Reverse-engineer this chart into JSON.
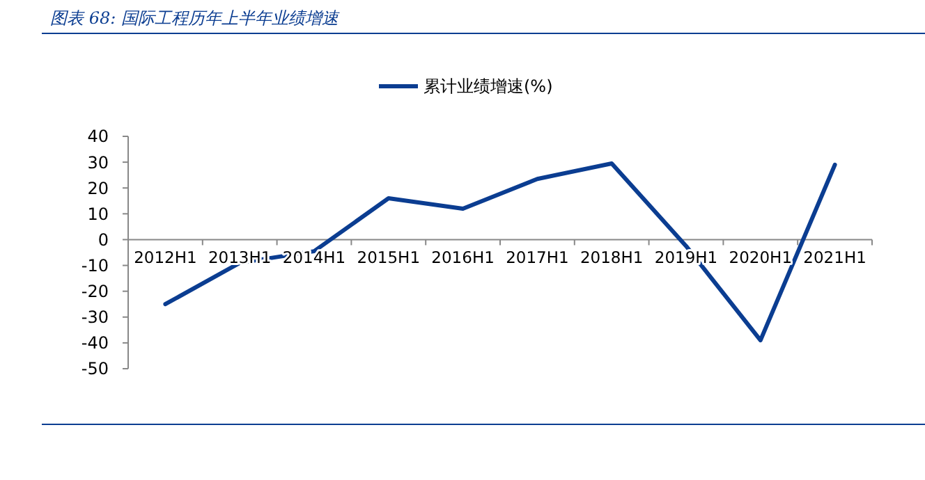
{
  "chart_data": {
    "type": "line",
    "title": "图表 68:  国际工程历年上半年业绩增速",
    "categories": [
      "2012H1",
      "2013H1",
      "2014H1",
      "2015H1",
      "2016H1",
      "2017H1",
      "2018H1",
      "2019H1",
      "2020H1",
      "2021H1"
    ],
    "series": [
      {
        "name": "累计业绩增速(%)",
        "color": "#0b3d91",
        "values": [
          -25,
          -9,
          -4.5,
          16,
          12,
          23.5,
          29.5,
          -2.5,
          -39,
          29
        ]
      }
    ],
    "ylim": [
      -50,
      40
    ],
    "yticks": [
      -50,
      -40,
      -30,
      -20,
      -10,
      0,
      10,
      20,
      30,
      40
    ],
    "grid": false,
    "legend": "top",
    "marker": "none",
    "line_style": "solid"
  }
}
